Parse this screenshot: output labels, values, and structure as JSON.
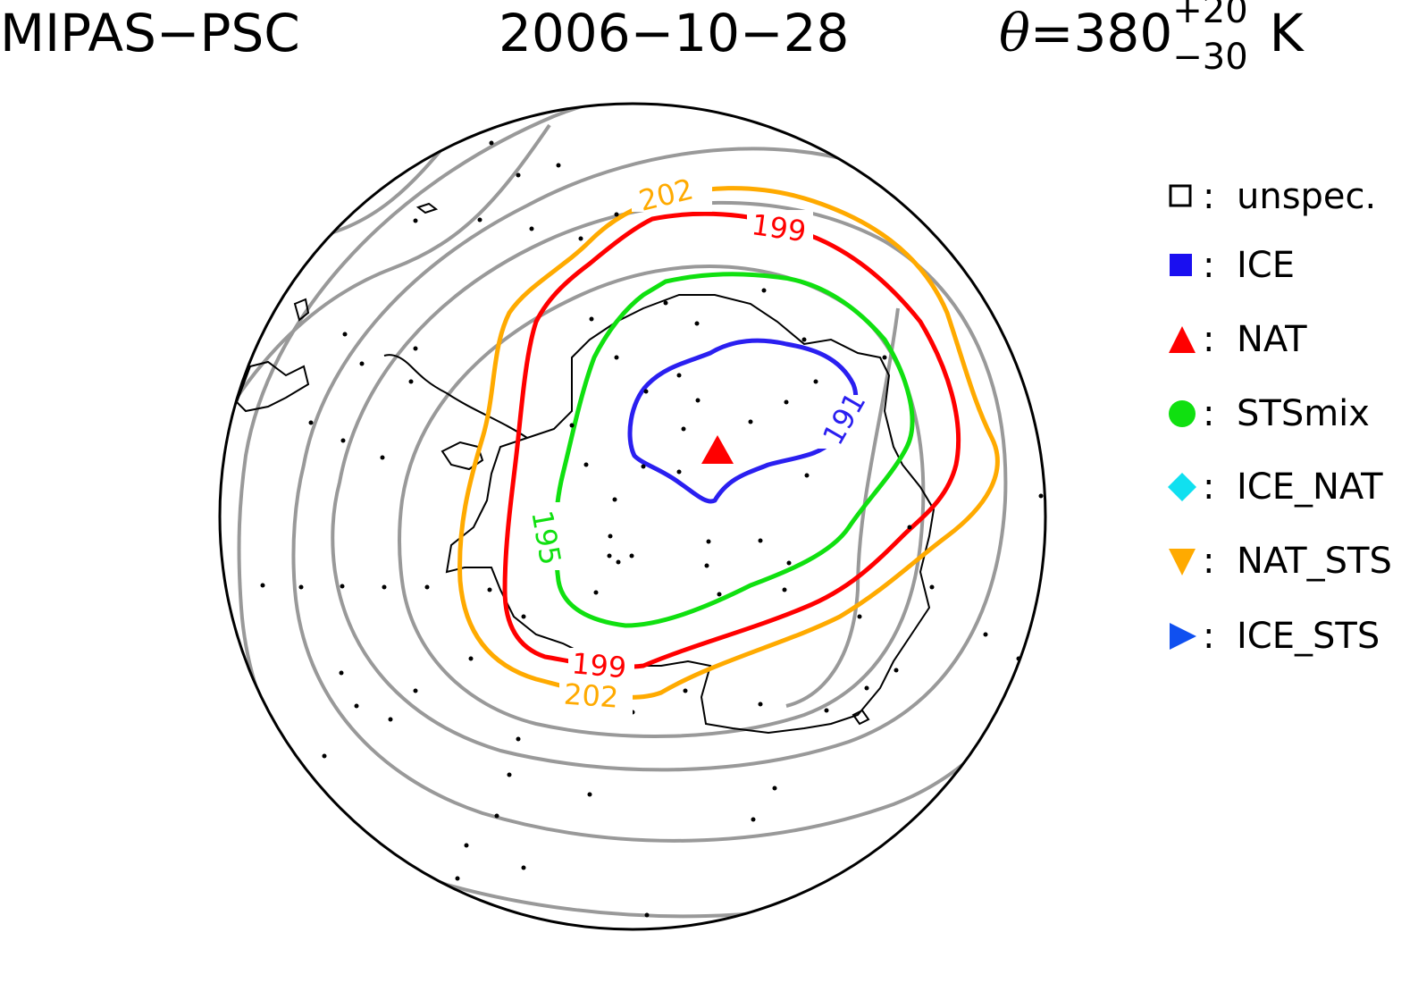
{
  "title": {
    "instrument": "MIPAS−PSC",
    "date": "2006−10−28",
    "theta_symbol": "θ",
    "theta_eq": "=380",
    "theta_sup": "+20",
    "theta_sub": "−30",
    "theta_unit": "K"
  },
  "contour_labels": {
    "c191": "191",
    "c195": "195",
    "c199_top": "199",
    "c199_bottom": "199",
    "c202_top": "202",
    "c202_bottom": "202"
  },
  "legend": [
    {
      "symbol": "open-square-icon",
      "label": "unspec.",
      "color": "#000000"
    },
    {
      "symbol": "filled-square-icon",
      "label": "ICE",
      "color": "#1a0ff0"
    },
    {
      "symbol": "triangle-up-icon",
      "label": "NAT",
      "color": "#ff0000"
    },
    {
      "symbol": "circle-icon",
      "label": "STSmix",
      "color": "#10e010"
    },
    {
      "symbol": "diamond-icon",
      "label": "ICE_NAT",
      "color": "#10e0f0"
    },
    {
      "symbol": "triangle-down-icon",
      "label": "NAT_STS",
      "color": "#ffaa00"
    },
    {
      "symbol": "triangle-right-icon",
      "label": "ICE_STS",
      "color": "#1050f0"
    }
  ],
  "colors": {
    "contour_191": "#2a1ff0",
    "contour_195": "#10e010",
    "contour_199": "#ff0000",
    "contour_202": "#ffaa00",
    "contour_other": "#999999",
    "coastline": "#000000",
    "nat_marker": "#ff0000"
  }
}
